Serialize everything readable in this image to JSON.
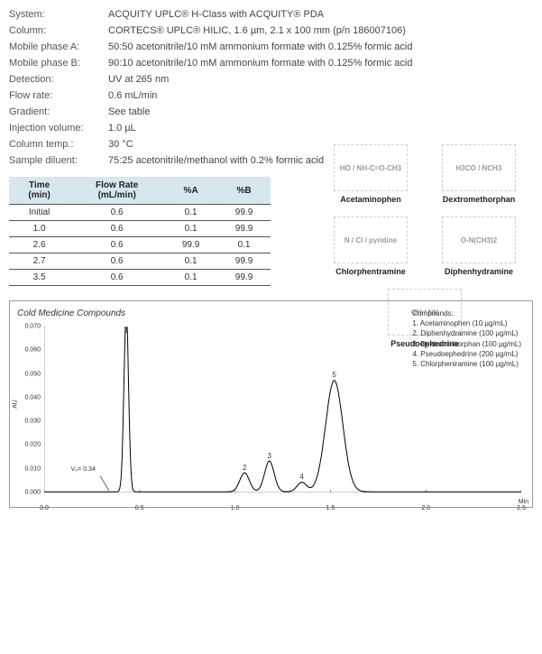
{
  "params": [
    {
      "label": "System:",
      "value": "ACQUITY UPLC® H-Class with ACQUITY® PDA"
    },
    {
      "label": "Column:",
      "value": "CORTECS® UPLC® HILIC, 1.6 µm, 2.1 x 100 mm (p/n 186007106)"
    },
    {
      "label": "Mobile phase A:",
      "value": "50:50 acetonitrile/10 mM ammonium formate with 0.125% formic acid"
    },
    {
      "label": "Mobile phase B:",
      "value": "90:10 acetonitrile/10 mM ammonium formate with 0.125% formic acid"
    },
    {
      "label": "Detection:",
      "value": "UV at 265 nm"
    },
    {
      "label": "Flow rate:",
      "value": "0.6 mL/min"
    },
    {
      "label": "Gradient:",
      "value": "See table"
    },
    {
      "label": "Injection volume:",
      "value": "1.0 µL"
    },
    {
      "label": "Column temp.:",
      "value": "30 °C"
    },
    {
      "label": "Sample diluent:",
      "value": "75:25 acetonitrile/methanol with 0.2% formic acid"
    }
  ],
  "molecules": {
    "row1": [
      {
        "name": "Acetaminophen",
        "tag": "HO / NH-C=O-CH3"
      },
      {
        "name": "Dextromethorphan",
        "tag": "H3CO / NCH3"
      }
    ],
    "row2": [
      {
        "name": "Chlorphentramine",
        "tag": "N / Cl / pyridine"
      },
      {
        "name": "Diphenhydramine",
        "tag": "O-N(CH3)2"
      }
    ],
    "row3": [
      {
        "name": "Pseudoephedrine",
        "tag": "OH / NH"
      }
    ]
  },
  "gradient": {
    "headers": [
      "Time\n(min)",
      "Flow Rate\n(mL/min)",
      "%A",
      "%B"
    ],
    "rows": [
      [
        "Initial",
        "0.6",
        "0.1",
        "99.9"
      ],
      [
        "1.0",
        "0.6",
        "0.1",
        "99.9"
      ],
      [
        "2.6",
        "0.6",
        "99.9",
        "0.1"
      ],
      [
        "2.7",
        "0.6",
        "0.1",
        "99.9"
      ],
      [
        "3.5",
        "0.6",
        "0.1",
        "99.9"
      ]
    ]
  },
  "chrom": {
    "title": "Cold Medicine Compounds",
    "legend_title": "Compounds:",
    "legend": [
      "1. Acetaminophen (10 µg/mL)",
      "2. Diphenhydramine (100 µg/mL)",
      "3. Dextromethorphan (100 µg/mL)",
      "4. Pseudoephedrine (200 µg/mL)",
      "5. Chlorpheniramine (100 µg/mL)"
    ],
    "y_axis": {
      "label": "AU",
      "min": 0.0,
      "max": 0.07,
      "ticks": [
        "0.000",
        "0.010",
        "0.020",
        "0.030",
        "0.040",
        "0.050",
        "0.060",
        "0.070"
      ]
    },
    "x_axis": {
      "label": "Min",
      "min": 0.0,
      "max": 2.5,
      "ticks": [
        "0.0",
        "0.5",
        "1.0",
        "1.5",
        "2.0",
        "2.5"
      ]
    },
    "v0": {
      "label": "V₀= 0.34",
      "x": 0.34
    },
    "peaks": [
      {
        "num": "1",
        "x": 0.43,
        "height": 0.076
      },
      {
        "num": "2",
        "x": 1.05,
        "height": 0.008
      },
      {
        "num": "3",
        "x": 1.18,
        "height": 0.013
      },
      {
        "num": "4",
        "x": 1.35,
        "height": 0.004
      },
      {
        "num": "5",
        "x": 1.52,
        "height": 0.047
      }
    ],
    "line_color": "#000000",
    "bg_color": "#ffffff"
  }
}
